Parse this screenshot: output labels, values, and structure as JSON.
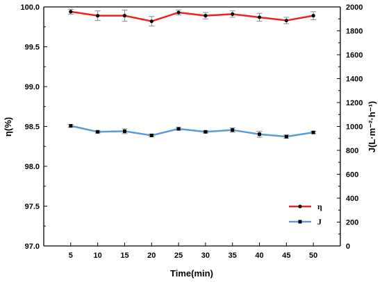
{
  "chart_data": {
    "type": "line",
    "x": [
      5,
      10,
      15,
      20,
      25,
      30,
      35,
      40,
      45,
      50
    ],
    "xticks": [
      "5",
      "10",
      "15",
      "20",
      "25",
      "30",
      "35",
      "40",
      "45",
      "50"
    ],
    "xlabel": "Time(min)",
    "xlim": [
      0,
      55
    ],
    "ylabel_left": "η(%)",
    "ylim_left": [
      97.0,
      100.0
    ],
    "yticks_left": [
      "97.0",
      "97.5",
      "98.0",
      "98.5",
      "99.0",
      "99.5",
      "100.0"
    ],
    "ylabel_right": "J(L·m⁻²·h⁻¹)",
    "ylim_right": [
      0,
      2000
    ],
    "yticks_right": [
      "0",
      "200",
      "400",
      "600",
      "800",
      "1000",
      "1200",
      "1400",
      "1600",
      "1800",
      "2000"
    ],
    "grid": false,
    "legend_position": "bottom-right",
    "series": [
      {
        "name": "η",
        "axis": "left",
        "color": "#ee2222",
        "marker": "circle",
        "values": [
          99.94,
          99.89,
          99.89,
          99.82,
          99.93,
          99.89,
          99.91,
          99.87,
          99.83,
          99.89
        ],
        "errors": [
          0.03,
          0.06,
          0.07,
          0.06,
          0.03,
          0.04,
          0.04,
          0.05,
          0.04,
          0.05
        ]
      },
      {
        "name": "J",
        "axis": "right",
        "color": "#5b9bd5",
        "marker": "square",
        "values": [
          1005,
          955,
          960,
          925,
          980,
          955,
          970,
          935,
          915,
          950
        ],
        "errors": [
          12,
          10,
          20,
          12,
          12,
          10,
          18,
          25,
          14,
          10
        ]
      }
    ]
  }
}
